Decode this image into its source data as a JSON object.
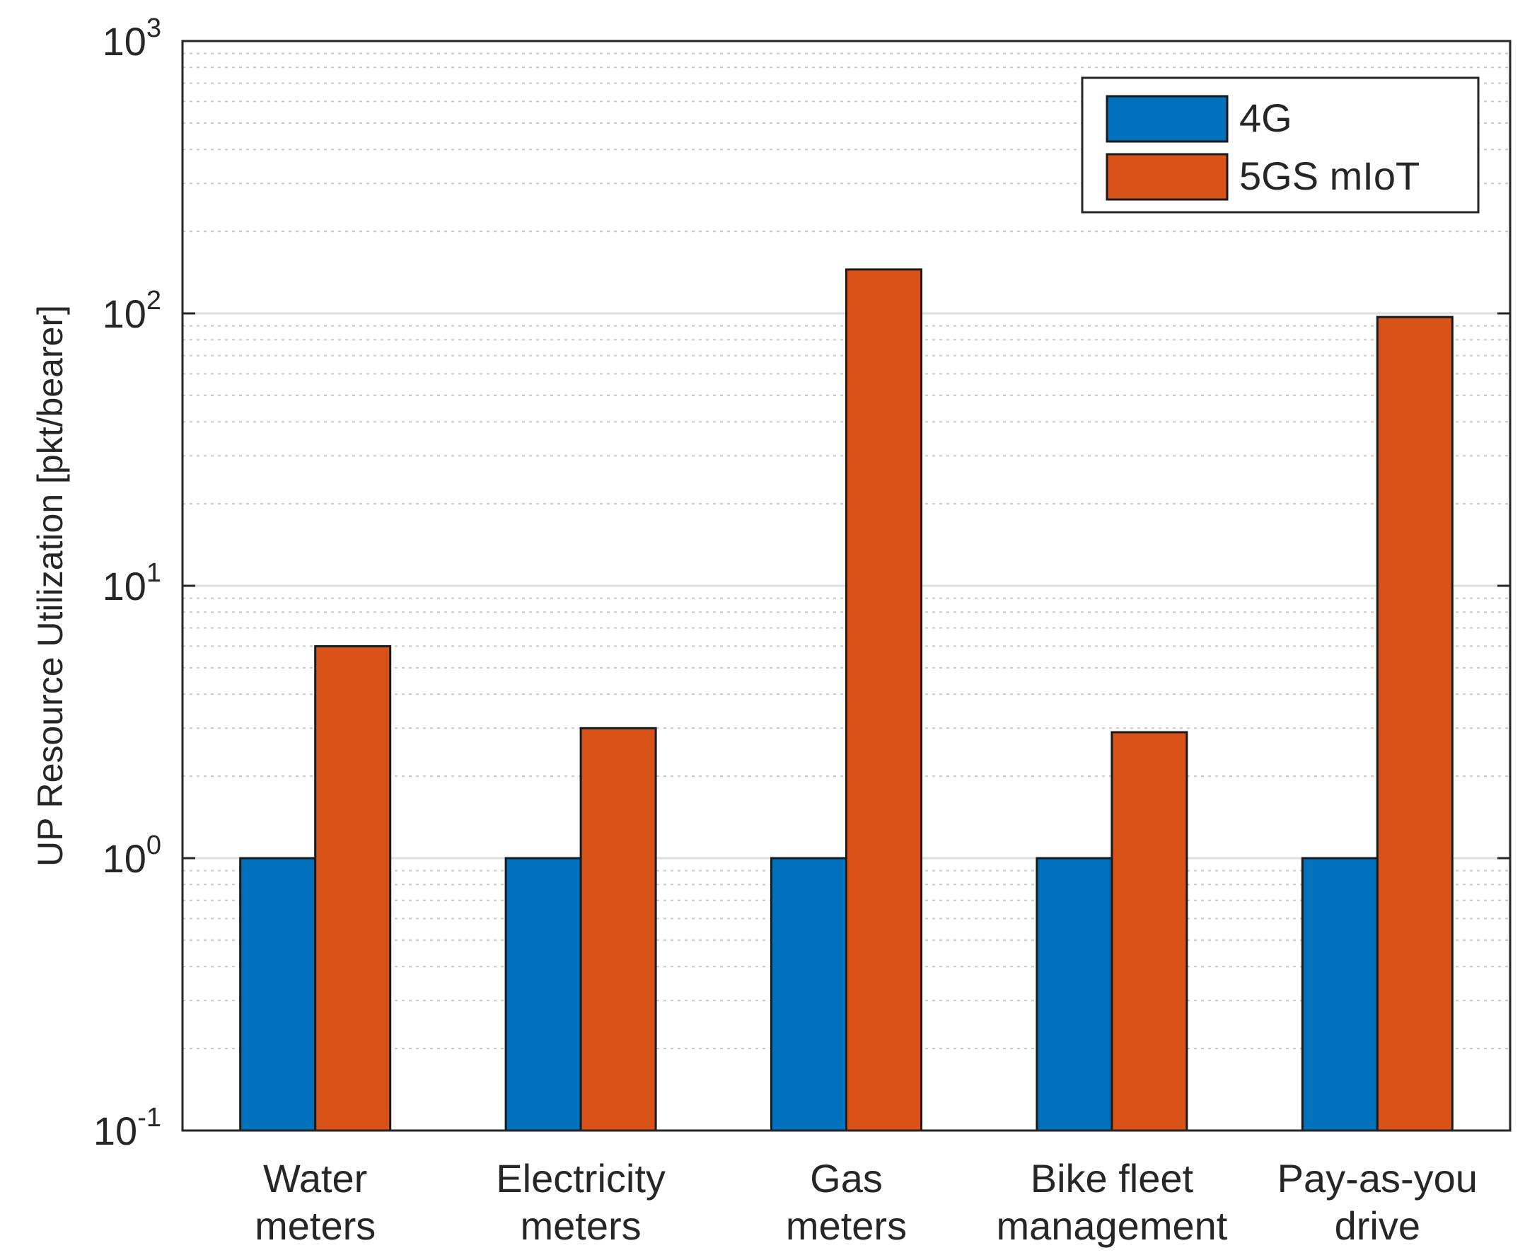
{
  "chart_data": {
    "type": "bar",
    "title": "",
    "xlabel": "",
    "ylabel": "UP Resource Utilization [pkt/bearer]",
    "yscale": "log",
    "ylim": [
      0.1,
      1000
    ],
    "yticks": [
      {
        "base": "10",
        "exp": "-1"
      },
      {
        "base": "10",
        "exp": "0"
      },
      {
        "base": "10",
        "exp": "1"
      },
      {
        "base": "10",
        "exp": "2"
      },
      {
        "base": "10",
        "exp": "3"
      }
    ],
    "grid": true,
    "legend_position": "top-right",
    "categories": [
      [
        "Water",
        "meters"
      ],
      [
        "Electricity",
        "meters"
      ],
      [
        "Gas",
        "meters"
      ],
      [
        "Bike fleet",
        "management"
      ],
      [
        "Pay-as-you",
        "drive"
      ]
    ],
    "series": [
      {
        "name": "4G",
        "color": "#0072BD",
        "values": [
          1,
          1,
          1,
          1,
          1
        ]
      },
      {
        "name": "5GS mIoT",
        "color": "#D95319",
        "values": [
          6,
          3,
          145,
          2.9,
          97
        ]
      }
    ]
  }
}
